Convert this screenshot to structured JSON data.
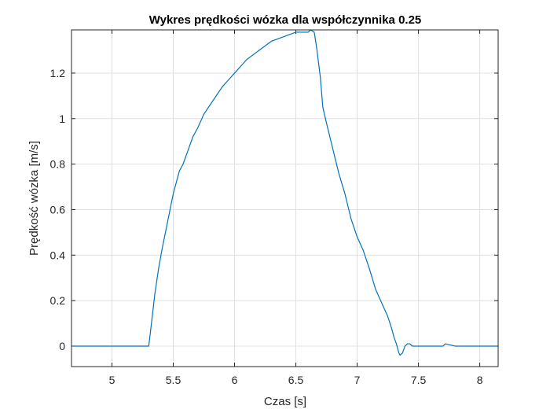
{
  "chart_data": {
    "type": "line",
    "title": "Wykres prędkości wózka dla współczynnika 0.25",
    "xlabel": "Czas [s]",
    "ylabel": "Prędkość wózka [m/s]",
    "xlim": [
      4.67,
      8.15
    ],
    "ylim": [
      -0.09,
      1.39
    ],
    "xticks": [
      5,
      5.5,
      6,
      6.5,
      7,
      7.5,
      8
    ],
    "xtick_labels": [
      "5",
      "5.5",
      "6",
      "6.5",
      "7",
      "7.5",
      "8"
    ],
    "yticks": [
      0,
      0.2,
      0.4,
      0.6,
      0.8,
      1,
      1.2
    ],
    "ytick_labels": [
      "0",
      "0.2",
      "0.4",
      "0.6",
      "0.8",
      "1",
      "1.2"
    ],
    "grid": true,
    "legend": "none",
    "series": [
      {
        "color": "#0072bd",
        "x": [
          4.67,
          5.3,
          5.32,
          5.35,
          5.38,
          5.41,
          5.44,
          5.47,
          5.5,
          5.52,
          5.55,
          5.58,
          5.62,
          5.66,
          5.7,
          5.75,
          5.8,
          5.85,
          5.9,
          5.95,
          6.0,
          6.05,
          6.1,
          6.15,
          6.2,
          6.25,
          6.3,
          6.35,
          6.4,
          6.45,
          6.5,
          6.55,
          6.6,
          6.62,
          6.65,
          6.67,
          6.7,
          6.72,
          6.75,
          6.8,
          6.85,
          6.9,
          6.95,
          7.0,
          7.05,
          7.1,
          7.15,
          7.2,
          7.25,
          7.28,
          7.3,
          7.32,
          7.34,
          7.35,
          7.37,
          7.39,
          7.41,
          7.43,
          7.45,
          7.47,
          7.5,
          7.6,
          7.7,
          7.72,
          7.8,
          7.9,
          8.0,
          8.15
        ],
        "y": [
          0,
          0,
          0.09,
          0.23,
          0.34,
          0.43,
          0.51,
          0.59,
          0.67,
          0.71,
          0.77,
          0.8,
          0.86,
          0.92,
          0.96,
          1.02,
          1.06,
          1.1,
          1.14,
          1.17,
          1.2,
          1.23,
          1.26,
          1.28,
          1.3,
          1.32,
          1.34,
          1.35,
          1.36,
          1.37,
          1.38,
          1.38,
          1.38,
          1.39,
          1.38,
          1.31,
          1.18,
          1.05,
          0.98,
          0.87,
          0.76,
          0.67,
          0.56,
          0.48,
          0.42,
          0.34,
          0.25,
          0.19,
          0.13,
          0.08,
          0.04,
          0.01,
          -0.03,
          -0.04,
          -0.03,
          0.0,
          0.01,
          0.01,
          0.0,
          0.0,
          0.0,
          0.0,
          0.0,
          0.01,
          0.0,
          0.0,
          0.0,
          0.0
        ]
      }
    ]
  }
}
